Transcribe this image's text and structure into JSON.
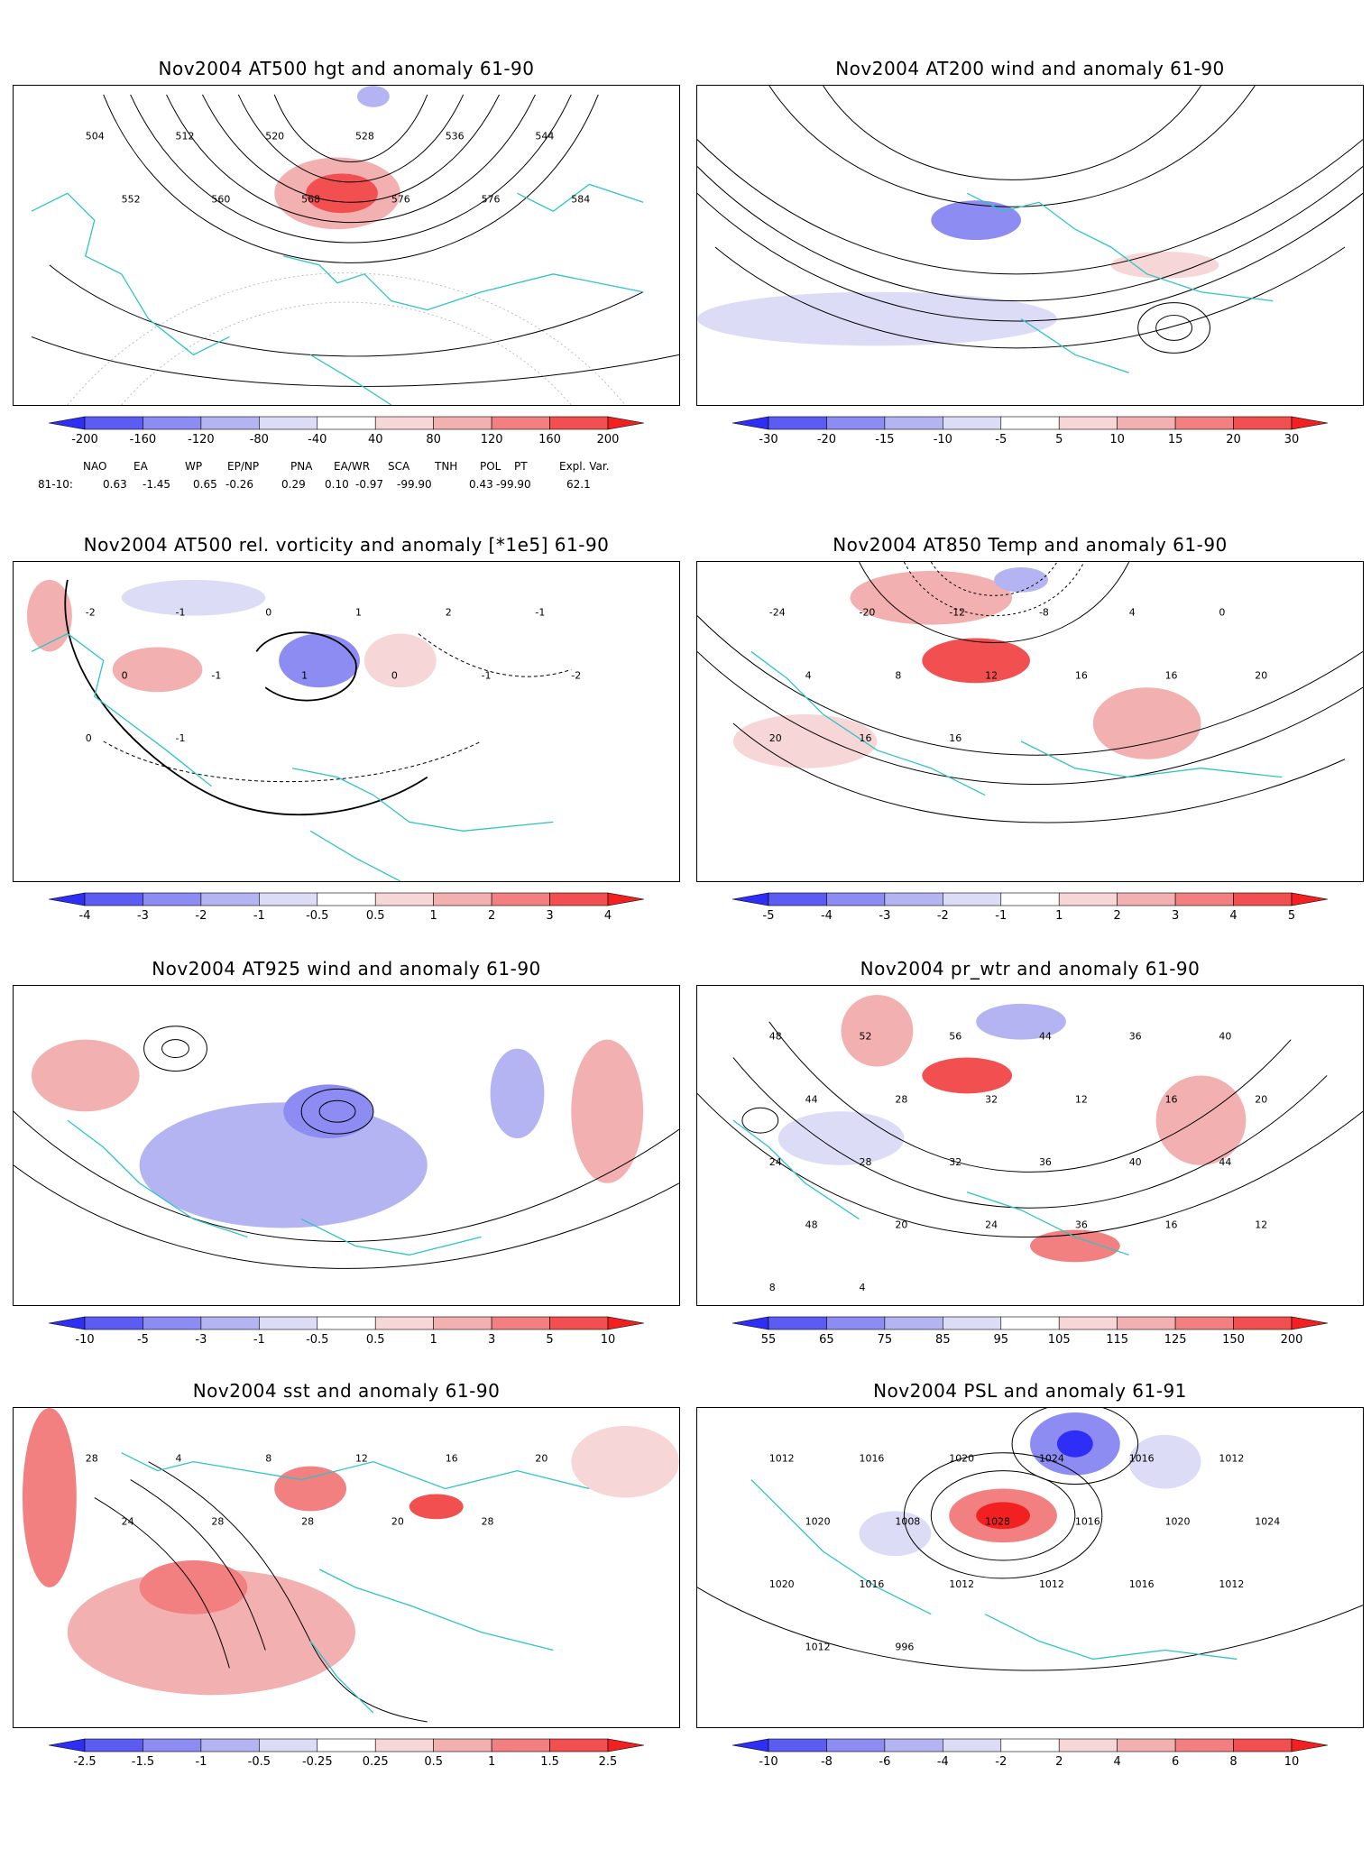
{
  "panels": [
    {
      "id": "p1",
      "title": "Nov2004 AT500 hgt and anomaly 61-90",
      "colorbar": [
        "-200",
        "-160",
        "-120",
        "-80",
        "-40",
        "40",
        "80",
        "120",
        "160",
        "200"
      ],
      "contour_labels": [
        "504",
        "512",
        "520",
        "528",
        "536",
        "544",
        "552",
        "560",
        "568",
        "576",
        "576",
        "584"
      ],
      "anomaly_blobs": [
        "warm"
      ],
      "indices": {
        "headers": [
          "NAO",
          "EA",
          "WP",
          "EP/NP",
          "PNA",
          "EA/WR",
          "SCA",
          "TNH",
          "POL",
          "PT",
          "Expl. Var."
        ],
        "row_label": "81-10:",
        "values": [
          "0.63",
          "-1.45",
          "0.65",
          "-0.26",
          "0.29",
          "0.10",
          "-0.97",
          "-99.90",
          "0.43",
          "-99.90",
          "62.1"
        ]
      }
    },
    {
      "id": "p2",
      "title": "Nov2004 AT200 wind and anomaly 61-90",
      "colorbar": [
        "-30",
        "-20",
        "-15",
        "-10",
        "-5",
        "5",
        "10",
        "15",
        "20",
        "30"
      ],
      "contour_labels": []
    },
    {
      "id": "p3",
      "title": "Nov2004 AT500 rel. vorticity and anomaly [*1e5] 61-90",
      "colorbar": [
        "-4",
        "-3",
        "-2",
        "-1",
        "-0.5",
        "0.5",
        "1",
        "2",
        "3",
        "4"
      ],
      "contour_labels": [
        "-2",
        "-1",
        "0",
        "1",
        "2",
        "-1",
        "0",
        "-1",
        "1",
        "0",
        "-1",
        "-2",
        "0",
        "-1"
      ]
    },
    {
      "id": "p4",
      "title": "Nov2004 AT850 Temp and anomaly 61-90",
      "colorbar": [
        "-5",
        "-4",
        "-3",
        "-2",
        "-1",
        "1",
        "2",
        "3",
        "4",
        "5"
      ],
      "contour_labels": [
        "-24",
        "-20",
        "-12",
        "-8",
        "4",
        "0",
        "4",
        "8",
        "12",
        "16",
        "16",
        "20",
        "20",
        "16",
        "16"
      ]
    },
    {
      "id": "p5",
      "title": "Nov2004 AT925 wind and anomaly 61-90",
      "colorbar": [
        "-10",
        "-5",
        "-3",
        "-1",
        "-0.5",
        "0.5",
        "1",
        "3",
        "5",
        "10"
      ],
      "contour_labels": []
    },
    {
      "id": "p6",
      "title": "Nov2004 pr_wtr and anomaly 61-90",
      "colorbar": [
        "55",
        "65",
        "75",
        "85",
        "95",
        "105",
        "115",
        "125",
        "150",
        "200"
      ],
      "contour_labels": [
        "48",
        "52",
        "56",
        "44",
        "36",
        "40",
        "44",
        "28",
        "32",
        "12",
        "16",
        "20",
        "24",
        "28",
        "32",
        "36",
        "40",
        "44",
        "48",
        "20",
        "24",
        "36",
        "16",
        "12",
        "8",
        "4"
      ]
    },
    {
      "id": "p7",
      "title": "Nov2004 sst and anomaly 61-90",
      "colorbar": [
        "-2.5",
        "-1.5",
        "-1",
        "-0.5",
        "-0.25",
        "0.25",
        "0.5",
        "1",
        "1.5",
        "2.5"
      ],
      "contour_labels": [
        "28",
        "4",
        "8",
        "12",
        "16",
        "20",
        "24",
        "28",
        "28",
        "20",
        "28"
      ]
    },
    {
      "id": "p8",
      "title": "Nov2004 PSL and anomaly 61-91",
      "colorbar": [
        "-10",
        "-8",
        "-6",
        "-4",
        "-2",
        "2",
        "4",
        "6",
        "8",
        "10"
      ],
      "contour_labels": [
        "1012",
        "1016",
        "1020",
        "1024",
        "1016",
        "1012",
        "1020",
        "1008",
        "1028",
        "1016",
        "1020",
        "1024",
        "1020",
        "1016",
        "1012",
        "1012",
        "1016",
        "1012",
        "1012",
        "996"
      ]
    }
  ],
  "colors": {
    "coast": "#2ec4c4",
    "contour": "#000000",
    "blue_ramp": [
      "#2e2ef6",
      "#5c5cf2",
      "#8c8cf2",
      "#b4b4f2",
      "#dcdcf6"
    ],
    "red_ramp": [
      "#f6d6d6",
      "#f2b0b0",
      "#f28080",
      "#f25050",
      "#f22020"
    ]
  }
}
